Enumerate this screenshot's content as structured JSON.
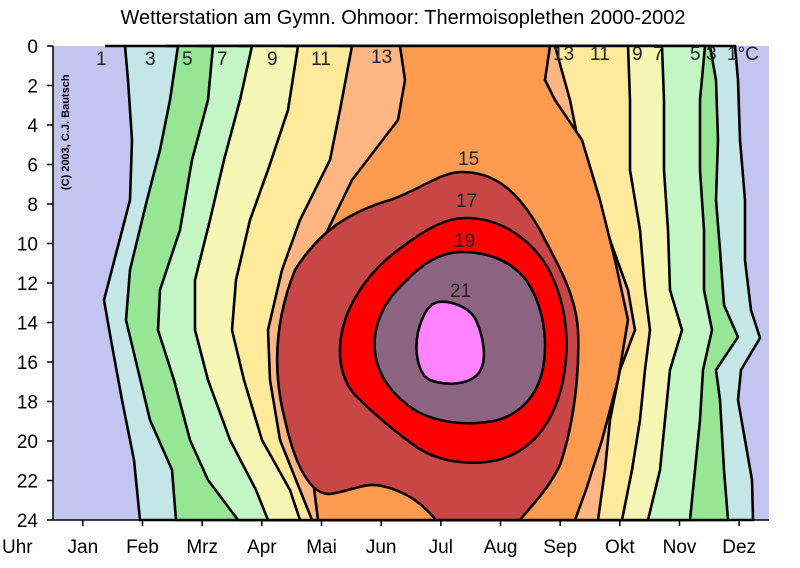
{
  "chart_data": {
    "type": "heatmap",
    "title": "Wetterstation am Gymn. Ohmoor: Thermoisoplethen 2000-2002",
    "x_tick_labels": [
      "Jan",
      "Feb",
      "Mrz",
      "Apr",
      "Mai",
      "Jun",
      "Jul",
      "Aug",
      "Sep",
      "Okt",
      "Nov",
      "Dez"
    ],
    "y_tick_labels": [
      "0",
      "2",
      "4",
      "6",
      "8",
      "10",
      "12",
      "14",
      "16",
      "18",
      "20",
      "22",
      "24"
    ],
    "y_unit_label": "Uhr",
    "ylim": [
      0,
      24
    ],
    "contour_levels": [
      1,
      3,
      5,
      7,
      9,
      11,
      13,
      15,
      17,
      19,
      21
    ],
    "contour_labels": [
      {
        "text": "1",
        "side": "early"
      },
      {
        "text": "3",
        "side": "early"
      },
      {
        "text": "5",
        "side": "early"
      },
      {
        "text": "7",
        "side": "early"
      },
      {
        "text": "9",
        "side": "early"
      },
      {
        "text": "11",
        "side": "early"
      },
      {
        "text": "13",
        "side": "early"
      },
      {
        "text": "13",
        "side": "late"
      },
      {
        "text": "11",
        "side": "late"
      },
      {
        "text": "9",
        "side": "late"
      },
      {
        "text": "7",
        "side": "late"
      },
      {
        "text": "5",
        "side": "late"
      },
      {
        "text": "3",
        "side": "late"
      },
      {
        "text": "1°C",
        "side": "late"
      },
      {
        "text": "15",
        "side": "center"
      },
      {
        "text": "17",
        "side": "center"
      },
      {
        "text": "19",
        "side": "center"
      },
      {
        "text": "21",
        "side": "center"
      }
    ],
    "band_colors": [
      "#c4c4f0",
      "#c4e6e6",
      "#96e696",
      "#c4f5c4",
      "#f5f5b4",
      "#ffea9c",
      "#ffb682",
      "#ff9b50",
      "#c84646",
      "#ff0000",
      "#8c6482",
      "#ff82ff"
    ],
    "copyright": "(C) 2003, C.J. Bautsch"
  }
}
